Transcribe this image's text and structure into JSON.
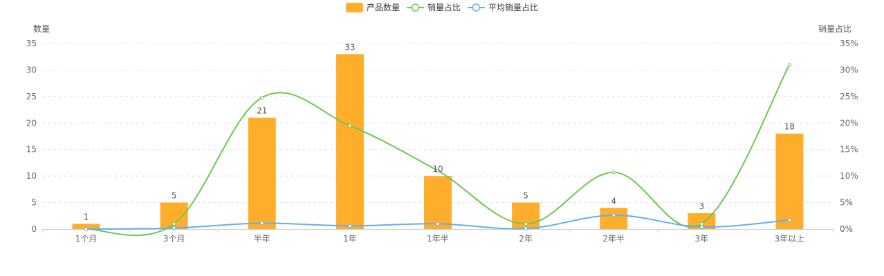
{
  "chart_data": {
    "type": "bar",
    "categories": [
      "1个月",
      "3个月",
      "半年",
      "1年",
      "1年半",
      "2年",
      "2年半",
      "3年",
      "3年以上"
    ],
    "series": [
      {
        "name": "产品数量",
        "type": "bar",
        "axis": "left",
        "color": "#FFAE2C",
        "values": [
          1,
          5,
          21,
          33,
          10,
          5,
          4,
          3,
          18
        ]
      },
      {
        "name": "销量占比",
        "type": "line",
        "axis": "right",
        "color": "#6CC84F",
        "values": [
          0,
          1,
          24.8,
          19.5,
          11,
          1,
          10.7,
          1,
          31
        ]
      },
      {
        "name": "平均销量占比",
        "type": "line",
        "axis": "right",
        "color": "#64ADEF",
        "values": [
          0,
          0.2,
          1.1,
          0.6,
          1.0,
          0.1,
          2.6,
          0.4,
          1.7
        ]
      }
    ],
    "ylabel_left": "数量",
    "ylabel_right": "销量占比",
    "ylim_left": [
      0,
      35
    ],
    "ylim_right": [
      0,
      35
    ],
    "yticks_left": [
      "0",
      "5",
      "10",
      "15",
      "20",
      "25",
      "30",
      "35"
    ],
    "yticks_right": [
      "0%",
      "5%",
      "10%",
      "15%",
      "20%",
      "25%",
      "30%",
      "35%"
    ],
    "grid": true,
    "legend_position": "top-center"
  }
}
